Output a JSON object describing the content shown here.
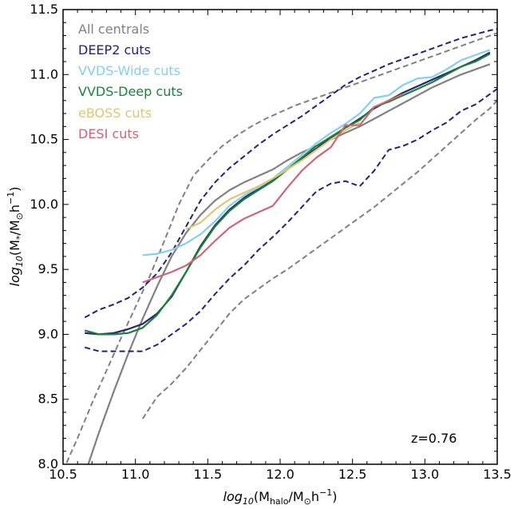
{
  "chart_data": {
    "type": "line",
    "xlabel": "log10(Mhalo/M⊙h−1)",
    "ylabel": "log10(M*/M⊙h−1)",
    "xlim": [
      10.5,
      13.5
    ],
    "ylim": [
      8.0,
      11.5
    ],
    "xticks": [
      "10.5",
      "11.0",
      "11.5",
      "12.0",
      "12.5",
      "13.0",
      "13.5"
    ],
    "yticks": [
      "8.0",
      "8.5",
      "9.0",
      "9.5",
      "10.0",
      "10.5",
      "11.0",
      "11.5"
    ],
    "grid": false,
    "legend_position": "top-left",
    "annotation": "z=0.76",
    "series": [
      {
        "name": "All centrals",
        "color": "#808080",
        "style": "solid",
        "x": [
          10.65,
          10.75,
          10.85,
          10.95,
          11.05,
          11.15,
          11.25,
          11.35,
          11.45,
          11.55,
          11.65,
          11.75,
          11.85,
          11.95,
          12.05,
          12.15,
          12.25,
          12.35,
          12.45,
          12.55,
          12.65,
          12.75,
          12.85,
          12.95,
          13.05,
          13.15,
          13.25,
          13.35,
          13.45
        ],
        "y": [
          7.92,
          8.25,
          8.56,
          8.85,
          9.12,
          9.37,
          9.6,
          9.78,
          9.92,
          10.03,
          10.11,
          10.17,
          10.22,
          10.27,
          10.34,
          10.4,
          10.45,
          10.5,
          10.55,
          10.6,
          10.66,
          10.72,
          10.78,
          10.84,
          10.9,
          10.95,
          11.0,
          11.04,
          11.08
        ]
      },
      {
        "name": "All centrals upper",
        "color": "#808080",
        "style": "dashed",
        "x": [
          10.5,
          10.6,
          10.7,
          10.8,
          10.9,
          11.0,
          11.1,
          11.2,
          11.3,
          11.4,
          11.5,
          11.6,
          11.7,
          11.8,
          11.9,
          12.0,
          12.1,
          12.2,
          12.3,
          12.4,
          12.5,
          12.6,
          12.7,
          12.8,
          12.9,
          13.0,
          13.1,
          13.2,
          13.3,
          13.4,
          13.5
        ],
        "y": [
          7.95,
          8.2,
          8.47,
          8.72,
          8.97,
          9.21,
          9.45,
          9.72,
          10.0,
          10.22,
          10.34,
          10.45,
          10.53,
          10.6,
          10.66,
          10.71,
          10.76,
          10.8,
          10.84,
          10.88,
          10.92,
          10.96,
          11.0,
          11.04,
          11.08,
          11.12,
          11.16,
          11.2,
          11.24,
          11.28,
          11.32
        ]
      },
      {
        "name": "All centrals lower",
        "color": "#808080",
        "style": "dashed",
        "x": [
          11.05,
          11.15,
          11.25,
          11.35,
          11.45,
          11.55,
          11.65,
          11.75,
          11.85,
          11.95,
          12.05,
          12.15,
          12.25,
          12.35,
          12.45,
          12.55,
          12.65,
          12.75,
          12.85,
          12.95,
          13.05,
          13.15,
          13.25,
          13.35,
          13.45,
          13.5
        ],
        "y": [
          8.35,
          8.52,
          8.62,
          8.74,
          8.88,
          9.02,
          9.16,
          9.27,
          9.35,
          9.43,
          9.5,
          9.58,
          9.66,
          9.74,
          9.82,
          9.9,
          9.98,
          10.07,
          10.16,
          10.25,
          10.35,
          10.45,
          10.55,
          10.65,
          10.74,
          10.8
        ]
      },
      {
        "name": "DEEP2 cuts",
        "color": "#24246e",
        "style": "solid",
        "x": [
          10.65,
          10.75,
          10.85,
          10.95,
          11.05,
          11.15,
          11.25,
          11.35,
          11.45,
          11.55,
          11.65,
          11.75,
          11.85,
          11.95,
          12.05,
          12.15,
          12.25,
          12.35,
          12.45,
          12.55,
          12.65,
          12.75,
          12.85,
          12.95,
          13.05,
          13.15,
          13.25,
          13.35,
          13.45
        ],
        "y": [
          9.01,
          9.0,
          9.01,
          9.04,
          9.08,
          9.16,
          9.29,
          9.48,
          9.68,
          9.84,
          9.96,
          10.05,
          10.12,
          10.19,
          10.27,
          10.35,
          10.43,
          10.51,
          10.59,
          10.66,
          10.74,
          10.8,
          10.86,
          10.91,
          10.96,
          11.01,
          11.06,
          11.11,
          11.17
        ]
      },
      {
        "name": "DEEP2 upper",
        "color": "#24246e",
        "style": "dashed",
        "x": [
          10.65,
          10.75,
          10.85,
          10.95,
          11.05,
          11.15,
          11.25,
          11.35,
          11.45,
          11.55,
          11.65,
          11.75,
          11.85,
          11.95,
          12.05,
          12.15,
          12.25,
          12.35,
          12.45,
          12.55,
          12.65,
          12.75,
          12.85,
          12.95,
          13.05,
          13.15,
          13.25,
          13.35,
          13.45,
          13.5
        ],
        "y": [
          9.13,
          9.19,
          9.23,
          9.28,
          9.36,
          9.47,
          9.63,
          9.83,
          10.03,
          10.17,
          10.28,
          10.37,
          10.46,
          10.54,
          10.61,
          10.68,
          10.76,
          10.84,
          10.92,
          10.98,
          11.03,
          11.08,
          11.12,
          11.16,
          11.2,
          11.24,
          11.28,
          11.31,
          11.34,
          11.35
        ]
      },
      {
        "name": "DEEP2 lower",
        "color": "#24246e",
        "style": "dashed",
        "x": [
          10.65,
          10.75,
          10.85,
          10.95,
          11.05,
          11.15,
          11.25,
          11.35,
          11.45,
          11.55,
          11.65,
          11.75,
          11.85,
          11.95,
          12.05,
          12.15,
          12.25,
          12.35,
          12.45,
          12.55,
          12.65,
          12.75,
          12.85,
          12.95,
          13.05,
          13.15,
          13.25,
          13.35,
          13.45,
          13.5
        ],
        "y": [
          8.9,
          8.87,
          8.87,
          8.87,
          8.87,
          8.92,
          9.0,
          9.08,
          9.18,
          9.31,
          9.43,
          9.53,
          9.65,
          9.75,
          9.86,
          9.98,
          10.1,
          10.16,
          10.18,
          10.14,
          10.26,
          10.42,
          10.45,
          10.5,
          10.57,
          10.63,
          10.72,
          10.77,
          10.85,
          10.89
        ]
      },
      {
        "name": "VVDS-Wide cuts",
        "color": "#87ceeb",
        "style": "solid",
        "x": [
          11.05,
          11.15,
          11.25,
          11.35,
          11.45,
          11.55,
          11.65,
          11.75,
          11.85,
          11.95,
          12.05,
          12.15,
          12.25,
          12.35,
          12.45,
          12.55,
          12.65,
          12.75,
          12.85,
          12.95,
          13.05,
          13.15,
          13.25,
          13.35,
          13.45
        ],
        "y": [
          9.61,
          9.62,
          9.65,
          9.7,
          9.77,
          9.87,
          9.99,
          10.07,
          10.13,
          10.2,
          10.29,
          10.38,
          10.47,
          10.55,
          10.62,
          10.7,
          10.82,
          10.84,
          10.92,
          10.97,
          10.98,
          11.04,
          11.11,
          11.15,
          11.19
        ]
      },
      {
        "name": "VVDS-Deep cuts",
        "color": "#1e7f3a",
        "style": "solid",
        "x": [
          10.65,
          10.75,
          10.85,
          10.95,
          11.05,
          11.15,
          11.25,
          11.35,
          11.45,
          11.55,
          11.65,
          11.75,
          11.85,
          11.95,
          12.05,
          12.15,
          12.25,
          12.35,
          12.45,
          12.55,
          12.65,
          12.75,
          12.85,
          12.95,
          13.05,
          13.15,
          13.25,
          13.35,
          13.45
        ],
        "y": [
          9.03,
          9.0,
          9.0,
          9.01,
          9.05,
          9.15,
          9.3,
          9.48,
          9.67,
          9.83,
          9.95,
          10.04,
          10.11,
          10.18,
          10.27,
          10.36,
          10.45,
          10.52,
          10.59,
          10.65,
          10.75,
          10.79,
          10.84,
          10.89,
          10.94,
          11.0,
          11.06,
          11.1,
          11.16
        ]
      },
      {
        "name": "eBOSS cuts",
        "color": "#e0c47a",
        "style": "solid",
        "x": [
          11.35,
          11.45,
          11.55,
          11.65,
          11.75,
          11.85,
          11.95,
          12.05,
          12.15,
          12.25,
          12.35,
          12.45,
          12.55
        ],
        "y": [
          9.81,
          9.86,
          9.96,
          10.04,
          10.09,
          10.14,
          10.2,
          10.27,
          10.34,
          10.42,
          10.5,
          10.57,
          10.63
        ]
      },
      {
        "name": "DESI cuts",
        "color": "#cc6677",
        "style": "solid",
        "x": [
          11.05,
          11.15,
          11.25,
          11.35,
          11.45,
          11.55,
          11.65,
          11.75,
          11.85,
          11.95,
          12.05,
          12.15,
          12.25,
          12.35,
          12.45,
          12.55,
          12.65,
          12.75,
          12.85
        ],
        "y": [
          9.4,
          9.44,
          9.48,
          9.53,
          9.61,
          9.72,
          9.82,
          9.89,
          9.94,
          9.99,
          10.13,
          10.26,
          10.36,
          10.44,
          10.61,
          10.61,
          10.75,
          10.8,
          10.85
        ]
      }
    ]
  },
  "legend": [
    {
      "label": "All centrals",
      "color": "#808080"
    },
    {
      "label": "DEEP2 cuts",
      "color": "#24246e"
    },
    {
      "label": "VVDS-Wide cuts",
      "color": "#87ceeb"
    },
    {
      "label": "VVDS-Deep cuts",
      "color": "#1e7f3a"
    },
    {
      "label": "eBOSS cuts",
      "color": "#e0c47a"
    },
    {
      "label": "DESI cuts",
      "color": "#cc6677"
    }
  ]
}
